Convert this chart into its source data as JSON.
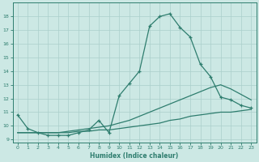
{
  "xlabel": "Humidex (Indice chaleur)",
  "background_color": "#cce8e4",
  "line_color": "#2e7d6e",
  "grid_color": "#aacfcb",
  "xlim": [
    -0.5,
    23.5
  ],
  "ylim": [
    8.8,
    19.0
  ],
  "yticks": [
    9,
    10,
    11,
    12,
    13,
    14,
    15,
    16,
    17,
    18
  ],
  "xticks": [
    0,
    1,
    2,
    3,
    4,
    5,
    6,
    7,
    8,
    9,
    10,
    11,
    12,
    13,
    14,
    15,
    16,
    17,
    18,
    19,
    20,
    21,
    22,
    23
  ],
  "series1_x": [
    0,
    1,
    2,
    3,
    4,
    5,
    6,
    7,
    8,
    9,
    10,
    11,
    12,
    13,
    14,
    15,
    16,
    17,
    18,
    19,
    20,
    21,
    22,
    23
  ],
  "series1_y": [
    10.8,
    9.8,
    9.5,
    9.3,
    9.3,
    9.3,
    9.5,
    9.7,
    10.4,
    9.5,
    12.2,
    13.1,
    14.0,
    17.3,
    18.0,
    18.2,
    17.2,
    16.5,
    14.5,
    13.6,
    12.1,
    11.9,
    11.5,
    11.3
  ],
  "series2_x": [
    0,
    1,
    2,
    3,
    4,
    5,
    6,
    7,
    8,
    9,
    10,
    11,
    12,
    13,
    14,
    15,
    16,
    17,
    18,
    19,
    20,
    21,
    22,
    23
  ],
  "series2_y": [
    9.5,
    9.5,
    9.5,
    9.5,
    9.5,
    9.6,
    9.7,
    9.8,
    9.9,
    10.0,
    10.2,
    10.4,
    10.7,
    11.0,
    11.3,
    11.6,
    11.9,
    12.2,
    12.5,
    12.8,
    13.0,
    12.7,
    12.3,
    11.9
  ],
  "series3_x": [
    0,
    1,
    2,
    3,
    4,
    5,
    6,
    7,
    8,
    9,
    10,
    11,
    12,
    13,
    14,
    15,
    16,
    17,
    18,
    19,
    20,
    21,
    22,
    23
  ],
  "series3_y": [
    9.5,
    9.5,
    9.5,
    9.5,
    9.5,
    9.5,
    9.6,
    9.6,
    9.7,
    9.7,
    9.8,
    9.9,
    10.0,
    10.1,
    10.2,
    10.4,
    10.5,
    10.7,
    10.8,
    10.9,
    11.0,
    11.0,
    11.1,
    11.2
  ]
}
